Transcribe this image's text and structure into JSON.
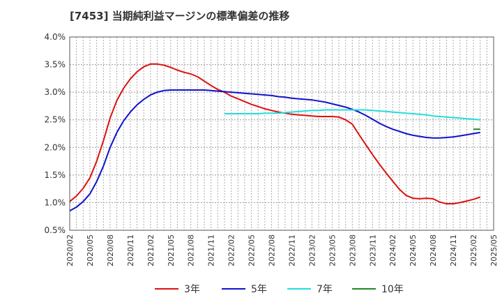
{
  "chart_data": {
    "type": "line",
    "title": "[7453]  当期純利益マージンの標準偏差の推移",
    "xlabel": "",
    "ylabel": "",
    "ylim": [
      0.5,
      4.0
    ],
    "yticks": [
      "0.5%",
      "1.0%",
      "1.5%",
      "2.0%",
      "2.5%",
      "3.0%",
      "3.5%",
      "4.0%"
    ],
    "xticks": [
      "2020/02",
      "2020/05",
      "2020/08",
      "2020/11",
      "2021/02",
      "2021/05",
      "2021/08",
      "2021/11",
      "2022/02",
      "2022/05",
      "2022/08",
      "2022/11",
      "2023/02",
      "2023/05",
      "2023/08",
      "2023/11",
      "2024/02",
      "2024/05",
      "2024/08",
      "2024/11",
      "2025/02",
      "2025/05"
    ],
    "grid": true,
    "legend_position": "bottom",
    "series": [
      {
        "name": "3年",
        "color": "#dd1111",
        "points": [
          [
            "2020/02",
            1.02
          ],
          [
            "2020/03",
            1.12
          ],
          [
            "2020/04",
            1.26
          ],
          [
            "2020/05",
            1.45
          ],
          [
            "2020/06",
            1.75
          ],
          [
            "2020/07",
            2.12
          ],
          [
            "2020/08",
            2.53
          ],
          [
            "2020/09",
            2.85
          ],
          [
            "2020/10",
            3.07
          ],
          [
            "2020/11",
            3.24
          ],
          [
            "2020/12",
            3.37
          ],
          [
            "2021/01",
            3.46
          ],
          [
            "2021/02",
            3.51
          ],
          [
            "2021/03",
            3.51
          ],
          [
            "2021/04",
            3.49
          ],
          [
            "2021/05",
            3.45
          ],
          [
            "2021/06",
            3.4
          ],
          [
            "2021/07",
            3.36
          ],
          [
            "2021/08",
            3.33
          ],
          [
            "2021/09",
            3.28
          ],
          [
            "2021/10",
            3.2
          ],
          [
            "2021/11",
            3.12
          ],
          [
            "2021/12",
            3.05
          ],
          [
            "2022/01",
            3.0
          ],
          [
            "2022/02",
            2.93
          ],
          [
            "2022/03",
            2.88
          ],
          [
            "2022/04",
            2.83
          ],
          [
            "2022/05",
            2.78
          ],
          [
            "2022/06",
            2.74
          ],
          [
            "2022/07",
            2.7
          ],
          [
            "2022/08",
            2.67
          ],
          [
            "2022/09",
            2.64
          ],
          [
            "2022/10",
            2.62
          ],
          [
            "2022/11",
            2.6
          ],
          [
            "2022/12",
            2.59
          ],
          [
            "2023/01",
            2.58
          ],
          [
            "2023/02",
            2.57
          ],
          [
            "2023/03",
            2.56
          ],
          [
            "2023/04",
            2.56
          ],
          [
            "2023/05",
            2.56
          ],
          [
            "2023/06",
            2.55
          ],
          [
            "2023/07",
            2.5
          ],
          [
            "2023/08",
            2.42
          ],
          [
            "2023/09",
            2.23
          ],
          [
            "2023/10",
            2.05
          ],
          [
            "2023/11",
            1.87
          ],
          [
            "2023/12",
            1.7
          ],
          [
            "2024/01",
            1.54
          ],
          [
            "2024/02",
            1.39
          ],
          [
            "2024/03",
            1.24
          ],
          [
            "2024/04",
            1.13
          ],
          [
            "2024/05",
            1.08
          ],
          [
            "2024/06",
            1.07
          ],
          [
            "2024/07",
            1.08
          ],
          [
            "2024/08",
            1.07
          ],
          [
            "2024/09",
            1.01
          ],
          [
            "2024/10",
            0.98
          ],
          [
            "2024/11",
            0.98
          ],
          [
            "2024/12",
            1.0
          ],
          [
            "2025/01",
            1.03
          ],
          [
            "2025/02",
            1.06
          ],
          [
            "2025/03",
            1.1
          ]
        ]
      },
      {
        "name": "5年",
        "color": "#1111cc",
        "points": [
          [
            "2020/02",
            0.85
          ],
          [
            "2020/03",
            0.92
          ],
          [
            "2020/04",
            1.02
          ],
          [
            "2020/05",
            1.16
          ],
          [
            "2020/06",
            1.38
          ],
          [
            "2020/07",
            1.66
          ],
          [
            "2020/08",
            2.0
          ],
          [
            "2020/09",
            2.27
          ],
          [
            "2020/10",
            2.48
          ],
          [
            "2020/11",
            2.64
          ],
          [
            "2020/12",
            2.77
          ],
          [
            "2021/01",
            2.87
          ],
          [
            "2021/02",
            2.95
          ],
          [
            "2021/03",
            3.0
          ],
          [
            "2021/04",
            3.03
          ],
          [
            "2021/05",
            3.04
          ],
          [
            "2021/06",
            3.04
          ],
          [
            "2021/07",
            3.04
          ],
          [
            "2021/08",
            3.04
          ],
          [
            "2021/09",
            3.04
          ],
          [
            "2021/10",
            3.04
          ],
          [
            "2021/11",
            3.03
          ],
          [
            "2021/12",
            3.02
          ],
          [
            "2022/01",
            3.01
          ],
          [
            "2022/02",
            3.0
          ],
          [
            "2022/03",
            2.99
          ],
          [
            "2022/04",
            2.98
          ],
          [
            "2022/05",
            2.97
          ],
          [
            "2022/06",
            2.96
          ],
          [
            "2022/07",
            2.95
          ],
          [
            "2022/08",
            2.94
          ],
          [
            "2022/09",
            2.92
          ],
          [
            "2022/10",
            2.91
          ],
          [
            "2022/11",
            2.89
          ],
          [
            "2022/12",
            2.88
          ],
          [
            "2023/01",
            2.87
          ],
          [
            "2023/02",
            2.86
          ],
          [
            "2023/03",
            2.84
          ],
          [
            "2023/04",
            2.82
          ],
          [
            "2023/05",
            2.79
          ],
          [
            "2023/06",
            2.76
          ],
          [
            "2023/07",
            2.73
          ],
          [
            "2023/08",
            2.69
          ],
          [
            "2023/09",
            2.64
          ],
          [
            "2023/10",
            2.58
          ],
          [
            "2023/11",
            2.51
          ],
          [
            "2023/12",
            2.44
          ],
          [
            "2024/01",
            2.38
          ],
          [
            "2024/02",
            2.33
          ],
          [
            "2024/03",
            2.29
          ],
          [
            "2024/04",
            2.25
          ],
          [
            "2024/05",
            2.22
          ],
          [
            "2024/06",
            2.2
          ],
          [
            "2024/07",
            2.18
          ],
          [
            "2024/08",
            2.17
          ],
          [
            "2024/09",
            2.17
          ],
          [
            "2024/10",
            2.18
          ],
          [
            "2024/11",
            2.19
          ],
          [
            "2024/12",
            2.21
          ],
          [
            "2025/01",
            2.23
          ],
          [
            "2025/02",
            2.25
          ],
          [
            "2025/03",
            2.27
          ]
        ]
      },
      {
        "name": "7年",
        "color": "#22dddd",
        "points": [
          [
            "2022/01",
            2.61
          ],
          [
            "2022/02",
            2.61
          ],
          [
            "2022/03",
            2.61
          ],
          [
            "2022/04",
            2.61
          ],
          [
            "2022/05",
            2.61
          ],
          [
            "2022/06",
            2.61
          ],
          [
            "2022/07",
            2.62
          ],
          [
            "2022/08",
            2.62
          ],
          [
            "2022/09",
            2.62
          ],
          [
            "2022/10",
            2.63
          ],
          [
            "2022/11",
            2.64
          ],
          [
            "2022/12",
            2.65
          ],
          [
            "2023/01",
            2.66
          ],
          [
            "2023/02",
            2.67
          ],
          [
            "2023/03",
            2.67
          ],
          [
            "2023/04",
            2.68
          ],
          [
            "2023/05",
            2.68
          ],
          [
            "2023/06",
            2.68
          ],
          [
            "2023/07",
            2.68
          ],
          [
            "2023/08",
            2.68
          ],
          [
            "2023/09",
            2.68
          ],
          [
            "2023/10",
            2.68
          ],
          [
            "2023/11",
            2.67
          ],
          [
            "2023/12",
            2.66
          ],
          [
            "2024/01",
            2.65
          ],
          [
            "2024/02",
            2.64
          ],
          [
            "2024/03",
            2.63
          ],
          [
            "2024/04",
            2.62
          ],
          [
            "2024/05",
            2.61
          ],
          [
            "2024/06",
            2.6
          ],
          [
            "2024/07",
            2.59
          ],
          [
            "2024/08",
            2.57
          ],
          [
            "2024/09",
            2.56
          ],
          [
            "2024/10",
            2.55
          ],
          [
            "2024/11",
            2.54
          ],
          [
            "2024/12",
            2.53
          ],
          [
            "2025/01",
            2.52
          ],
          [
            "2025/02",
            2.51
          ],
          [
            "2025/03",
            2.5
          ]
        ]
      },
      {
        "name": "10年",
        "color": "#228822",
        "points": [
          [
            "2025/02",
            2.33
          ],
          [
            "2025/03",
            2.33
          ]
        ]
      }
    ]
  }
}
